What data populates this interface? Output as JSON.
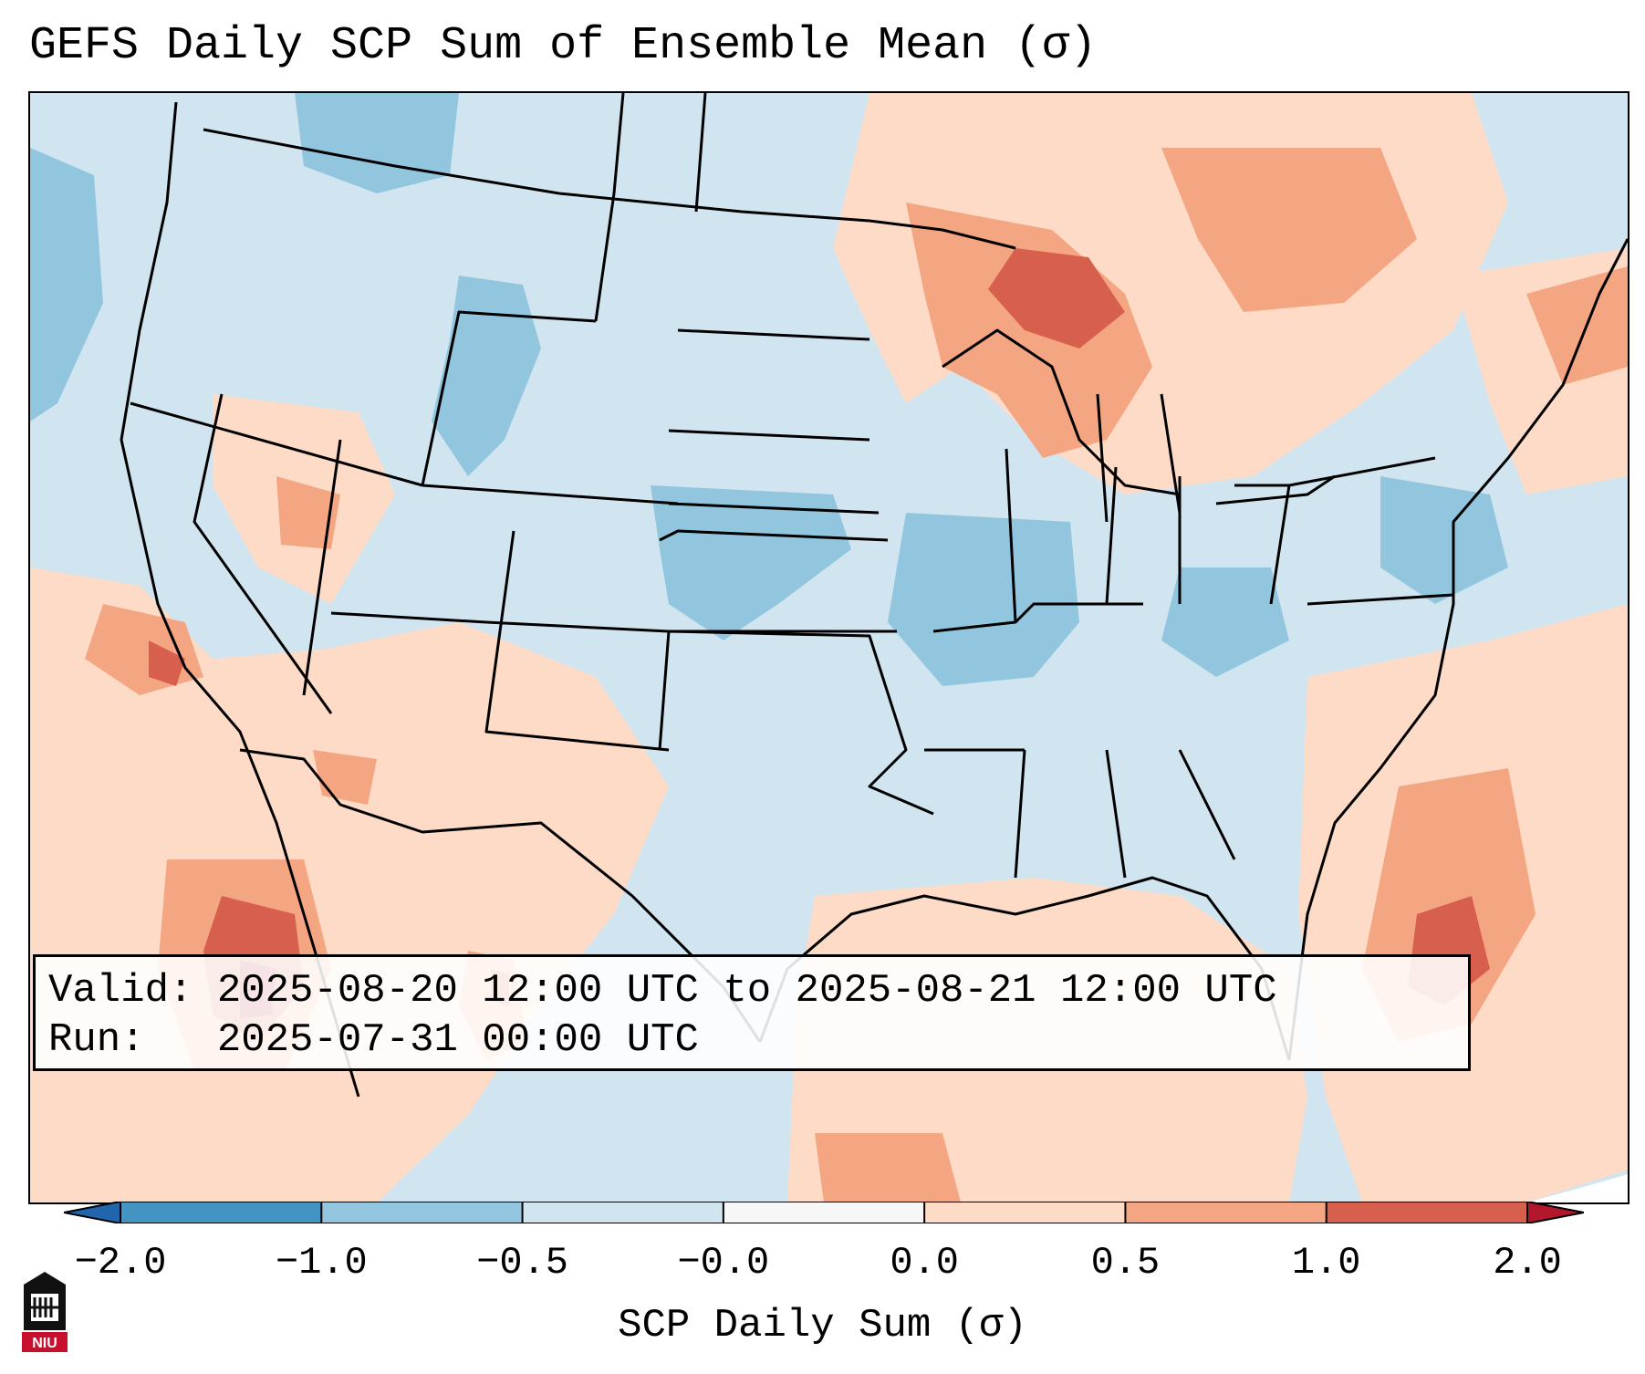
{
  "title": "GEFS Daily SCP Sum of Ensemble Mean (σ)",
  "info": {
    "valid_label": "Valid:",
    "valid_value": "2025-08-20 12:00 UTC to 2025-08-21 12:00 UTC",
    "run_label": "Run:",
    "run_value": "2025-07-31 00:00 UTC"
  },
  "map": {
    "region": "Contiguous United States",
    "variable": "SCP daily sum standardized anomaly",
    "units": "σ"
  },
  "colorbar": {
    "label": "SCP Daily Sum (σ)",
    "tick_labels": [
      "−2.0",
      "−1.0",
      "−0.5",
      "−0.0",
      "0.0",
      "0.5",
      "1.0",
      "2.0"
    ],
    "bins": [
      {
        "from": -2.0,
        "to": -1.0,
        "color": "#4393c3"
      },
      {
        "from": -1.0,
        "to": -0.5,
        "color": "#92c5de"
      },
      {
        "from": -0.5,
        "to": -0.0,
        "color": "#d1e5f0"
      },
      {
        "from": -0.0,
        "to": 0.0,
        "color": "#f7f7f7"
      },
      {
        "from": 0.0,
        "to": 0.5,
        "color": "#fddbc7"
      },
      {
        "from": 0.5,
        "to": 1.0,
        "color": "#f4a582"
      },
      {
        "from": 1.0,
        "to": 2.0,
        "color": "#d6604d"
      }
    ],
    "under_color": "#2166ac",
    "over_color": "#b2182b"
  },
  "logo": {
    "text": "NIU"
  }
}
